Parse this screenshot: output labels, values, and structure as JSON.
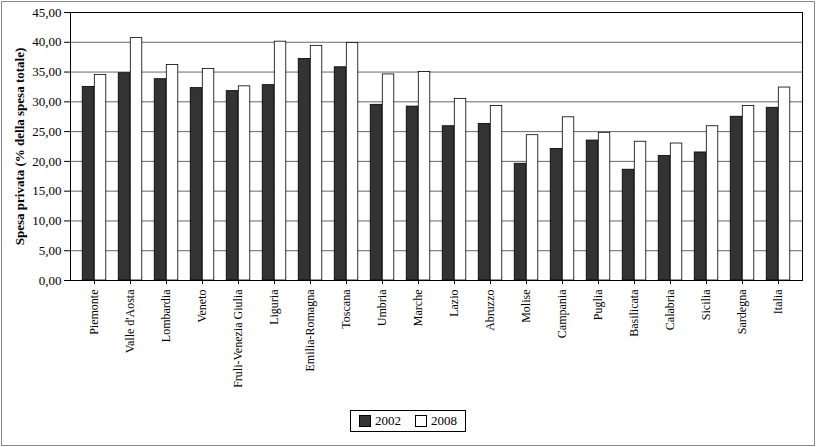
{
  "chart_data": {
    "type": "bar",
    "y_label": "Spesa privata (% della spesa totale)",
    "categories": [
      "Piemonte",
      "Valle d'Aosta",
      "Lombardia",
      "Veneto",
      "Fruli-Venezia Giulia",
      "Liguria",
      "Emilia-Romagna",
      "Toscana",
      "Umbria",
      "Marche",
      "Lazio",
      "Abruzzo",
      "Molise",
      "Campania",
      "Puglia",
      "Basilicata",
      "Calabria",
      "Sicilia",
      "Sardegna",
      "Italia"
    ],
    "series": [
      {
        "name": "2002",
        "color": "#333333",
        "values": [
          32.5,
          34.8,
          33.8,
          32.3,
          31.8,
          32.8,
          37.2,
          35.8,
          29.5,
          29.2,
          25.9,
          26.3,
          19.6,
          22.1,
          23.5,
          18.6,
          20.9,
          21.5,
          27.5,
          29.0
        ]
      },
      {
        "name": "2008",
        "color": "#ffffff",
        "values": [
          34.5,
          40.7,
          36.2,
          35.5,
          32.6,
          40.1,
          39.4,
          39.9,
          34.6,
          35.0,
          30.5,
          29.3,
          24.4,
          27.4,
          24.8,
          23.3,
          23.0,
          25.9,
          29.3,
          32.4
        ]
      }
    ],
    "ylim": [
      0,
      45
    ],
    "yticks": [
      {
        "value": 0,
        "label": "0,00"
      },
      {
        "value": 5,
        "label": "5,00"
      },
      {
        "value": 10,
        "label": "10,00"
      },
      {
        "value": 15,
        "label": "15,00"
      },
      {
        "value": 20,
        "label": "20,00"
      },
      {
        "value": 25,
        "label": "25,00"
      },
      {
        "value": 30,
        "label": "30,00"
      },
      {
        "value": 35,
        "label": "35,00"
      },
      {
        "value": 40,
        "label": "40,00"
      },
      {
        "value": 45,
        "label": "45,00"
      }
    ],
    "grid": true,
    "legend": "bottom"
  }
}
